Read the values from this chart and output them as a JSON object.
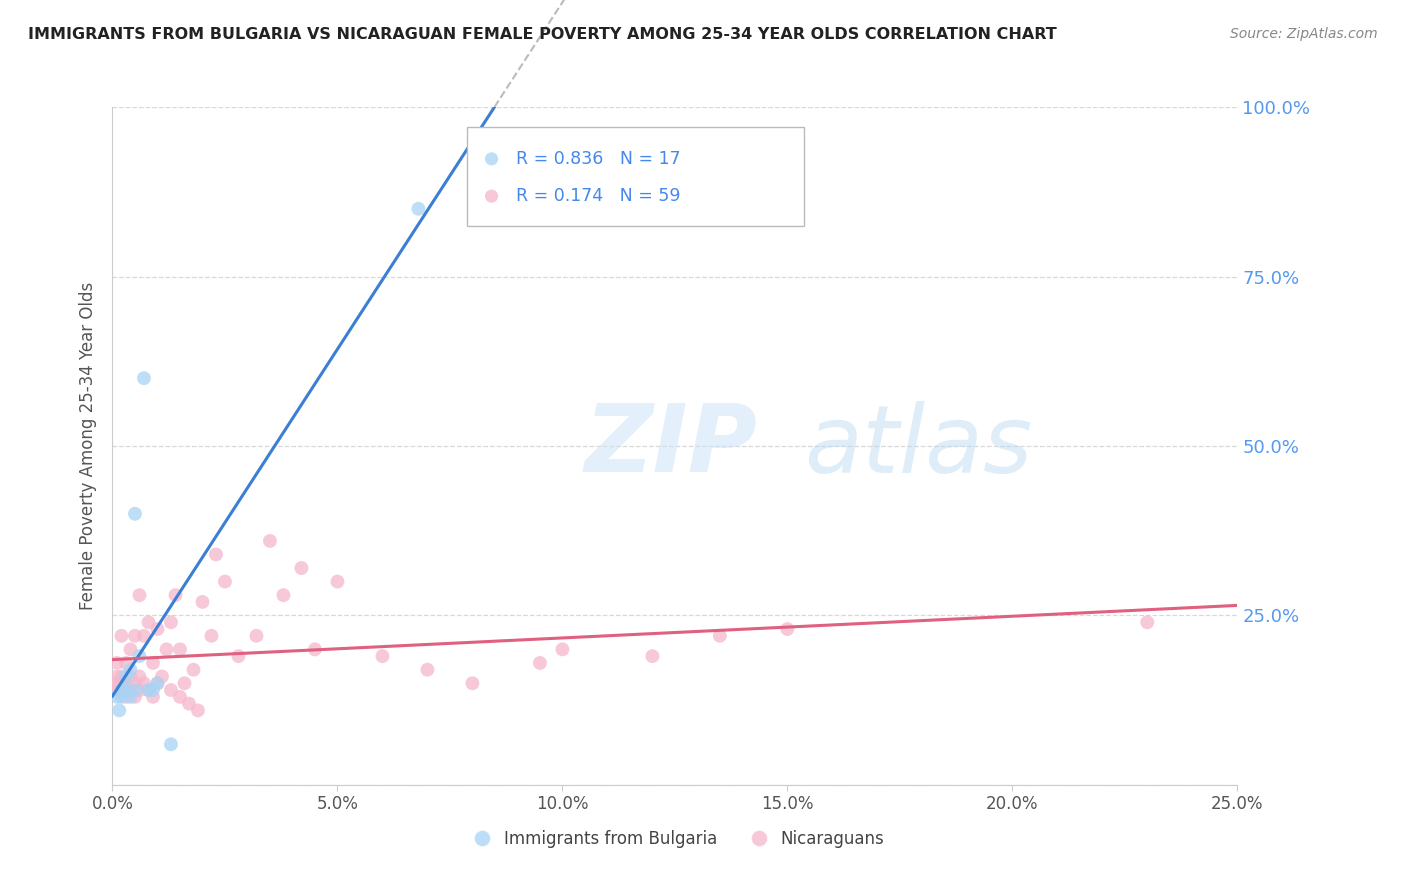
{
  "title": "IMMIGRANTS FROM BULGARIA VS NICARAGUAN FEMALE POVERTY AMONG 25-34 YEAR OLDS CORRELATION CHART",
  "source": "Source: ZipAtlas.com",
  "ylabel_left": "Female Poverty Among 25-34 Year Olds",
  "xlabel_legend1": "Immigrants from Bulgaria",
  "xlabel_legend2": "Nicaraguans",
  "r_bulgaria": 0.836,
  "n_bulgaria": 17,
  "r_nicaragua": 0.174,
  "n_nicaragua": 59,
  "xlim": [
    0.0,
    0.25
  ],
  "ylim": [
    0.0,
    1.0
  ],
  "color_bulgaria": "#a8d4f5",
  "color_nicaragua": "#f5b8cb",
  "color_line_bulgaria": "#3a7fd4",
  "color_line_nicaragua": "#e06080",
  "background_color": "#ffffff",
  "grid_color": "#d8d8d8",
  "watermark_zip": "ZIP",
  "watermark_atlas": "atlas",
  "bulgaria_x": [
    0.001,
    0.0015,
    0.002,
    0.002,
    0.003,
    0.003,
    0.004,
    0.004,
    0.005,
    0.005,
    0.006,
    0.007,
    0.008,
    0.009,
    0.01,
    0.013,
    0.068
  ],
  "bulgaria_y": [
    0.13,
    0.11,
    0.13,
    0.14,
    0.14,
    0.16,
    0.13,
    0.17,
    0.14,
    0.4,
    0.19,
    0.6,
    0.14,
    0.14,
    0.15,
    0.06,
    0.85
  ],
  "nicaragua_x": [
    0.001,
    0.001,
    0.001,
    0.001,
    0.002,
    0.002,
    0.002,
    0.002,
    0.003,
    0.003,
    0.003,
    0.004,
    0.004,
    0.004,
    0.005,
    0.005,
    0.005,
    0.006,
    0.006,
    0.006,
    0.007,
    0.007,
    0.008,
    0.008,
    0.009,
    0.009,
    0.01,
    0.01,
    0.011,
    0.012,
    0.013,
    0.013,
    0.014,
    0.015,
    0.015,
    0.016,
    0.017,
    0.018,
    0.019,
    0.02,
    0.022,
    0.023,
    0.025,
    0.028,
    0.032,
    0.035,
    0.038,
    0.042,
    0.045,
    0.05,
    0.06,
    0.07,
    0.08,
    0.095,
    0.1,
    0.12,
    0.135,
    0.15,
    0.23
  ],
  "nicaragua_y": [
    0.14,
    0.15,
    0.16,
    0.18,
    0.14,
    0.15,
    0.16,
    0.22,
    0.13,
    0.15,
    0.18,
    0.14,
    0.16,
    0.2,
    0.13,
    0.15,
    0.22,
    0.14,
    0.16,
    0.28,
    0.15,
    0.22,
    0.14,
    0.24,
    0.13,
    0.18,
    0.15,
    0.23,
    0.16,
    0.2,
    0.14,
    0.24,
    0.28,
    0.13,
    0.2,
    0.15,
    0.12,
    0.17,
    0.11,
    0.27,
    0.22,
    0.34,
    0.3,
    0.19,
    0.22,
    0.36,
    0.28,
    0.32,
    0.2,
    0.3,
    0.19,
    0.17,
    0.15,
    0.18,
    0.2,
    0.19,
    0.22,
    0.23,
    0.24
  ]
}
